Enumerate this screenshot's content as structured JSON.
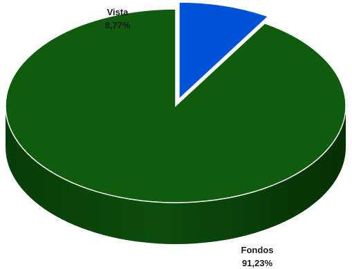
{
  "chart_data": {
    "type": "pie",
    "style": "3d",
    "slices": [
      {
        "label": "Vista",
        "value": 8.77,
        "value_label": "8,77%",
        "color": "#0052d9",
        "exploded": true
      },
      {
        "label": "Fondos",
        "value": 91.23,
        "value_label": "91,23%",
        "color": "#0f5c0f",
        "exploded": false
      }
    ],
    "legend": "none",
    "title": ""
  }
}
